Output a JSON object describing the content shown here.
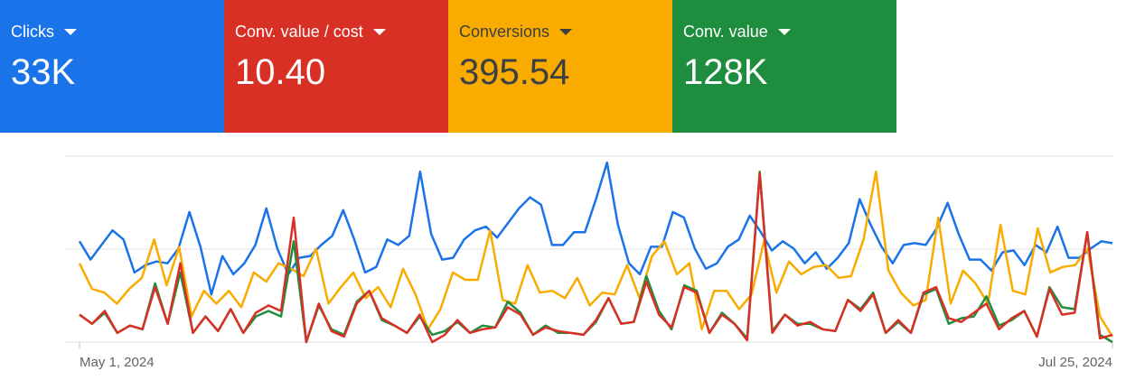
{
  "scorecards": [
    {
      "label": "Clicks",
      "value": "33K",
      "bg": "#1a73e8",
      "fg": "#ffffff"
    },
    {
      "label": "Conv. value / cost",
      "value": "10.40",
      "bg": "#d93025",
      "fg": "#ffffff"
    },
    {
      "label": "Conversions",
      "value": "395.54",
      "bg": "#f9ab00",
      "fg": "#3c4043"
    },
    {
      "label": "Conv. value",
      "value": "128K",
      "bg": "#1e8e3e",
      "fg": "#ffffff"
    }
  ],
  "chart_data": {
    "type": "line",
    "x_tick_labels": [
      "May 1, 2024",
      "Jul 25, 2024"
    ],
    "x_range": [
      "2024-05-01",
      "2024-07-25"
    ],
    "grid": true,
    "ylim": [
      0,
      1
    ],
    "series": [
      {
        "name": "Clicks",
        "color": "#1a73e8",
        "values": [
          0.55,
          0.45,
          0.53,
          0.61,
          0.56,
          0.38,
          0.42,
          0.44,
          0.43,
          0.51,
          0.71,
          0.52,
          0.26,
          0.47,
          0.37,
          0.43,
          0.53,
          0.73,
          0.51,
          0.37,
          0.46,
          0.47,
          0.53,
          0.58,
          0.72,
          0.56,
          0.38,
          0.41,
          0.56,
          0.53,
          0.58,
          0.93,
          0.59,
          0.45,
          0.46,
          0.56,
          0.61,
          0.63,
          0.57,
          0.65,
          0.73,
          0.79,
          0.75,
          0.53,
          0.53,
          0.6,
          0.6,
          0.78,
          0.98,
          0.64,
          0.43,
          0.37,
          0.52,
          0.52,
          0.71,
          0.68,
          0.51,
          0.4,
          0.43,
          0.52,
          0.56,
          0.69,
          0.6,
          0.5,
          0.55,
          0.51,
          0.43,
          0.49,
          0.4,
          0.46,
          0.54,
          0.78,
          0.64,
          0.52,
          0.43,
          0.53,
          0.54,
          0.53,
          0.62,
          0.76,
          0.59,
          0.45,
          0.45,
          0.39,
          0.49,
          0.5,
          0.42,
          0.53,
          0.49,
          0.63,
          0.46,
          0.46,
          0.51,
          0.55,
          0.54
        ]
      },
      {
        "name": "Conversions",
        "color": "#f9ab00",
        "values": [
          0.43,
          0.29,
          0.27,
          0.21,
          0.29,
          0.35,
          0.56,
          0.31,
          0.52,
          0.14,
          0.28,
          0.21,
          0.28,
          0.19,
          0.38,
          0.33,
          0.43,
          0.4,
          0.36,
          0.51,
          0.21,
          0.3,
          0.38,
          0.24,
          0.3,
          0.19,
          0.4,
          0.26,
          0.07,
          0.18,
          0.38,
          0.34,
          0.34,
          0.61,
          0.23,
          0.21,
          0.42,
          0.27,
          0.28,
          0.24,
          0.35,
          0.2,
          0.27,
          0.26,
          0.42,
          0.24,
          0.47,
          0.55,
          0.37,
          0.43,
          0.07,
          0.28,
          0.28,
          0.18,
          0.26,
          0.55,
          0.27,
          0.44,
          0.37,
          0.41,
          0.42,
          0.35,
          0.36,
          0.56,
          0.93,
          0.39,
          0.27,
          0.2,
          0.23,
          0.68,
          0.21,
          0.39,
          0.32,
          0.21,
          0.64,
          0.28,
          0.26,
          0.62,
          0.38,
          0.41,
          0.42,
          0.51,
          0.14,
          0.03
        ]
      },
      {
        "name": "Conv. value",
        "color": "#1e8e3e",
        "values": [
          0.15,
          0.1,
          0.16,
          0.05,
          0.09,
          0.07,
          0.32,
          0.1,
          0.38,
          0.05,
          0.14,
          0.06,
          0.18,
          0.05,
          0.14,
          0.17,
          0.14,
          0.55,
          0.0,
          0.2,
          0.07,
          0.04,
          0.22,
          0.28,
          0.12,
          0.09,
          0.05,
          0.14,
          0.04,
          0.06,
          0.11,
          0.05,
          0.09,
          0.08,
          0.22,
          0.16,
          0.04,
          0.09,
          0.05,
          0.05,
          0.04,
          0.11,
          0.24,
          0.1,
          0.11,
          0.36,
          0.17,
          0.07,
          0.31,
          0.28,
          0.05,
          0.16,
          0.1,
          0.02,
          0.93,
          0.06,
          0.15,
          0.1,
          0.1,
          0.07,
          0.06,
          0.23,
          0.18,
          0.27,
          0.05,
          0.11,
          0.05,
          0.26,
          0.29,
          0.1,
          0.13,
          0.14,
          0.25,
          0.09,
          0.12,
          0.17,
          0.03,
          0.3,
          0.19,
          0.18,
          0.6,
          0.04,
          0.0
        ]
      },
      {
        "name": "Conv. value / cost",
        "color": "#d93025",
        "values": [
          0.15,
          0.1,
          0.17,
          0.05,
          0.09,
          0.07,
          0.3,
          0.1,
          0.43,
          0.05,
          0.14,
          0.06,
          0.18,
          0.05,
          0.16,
          0.2,
          0.17,
          0.68,
          0.0,
          0.21,
          0.06,
          0.03,
          0.21,
          0.28,
          0.13,
          0.09,
          0.05,
          0.15,
          0.0,
          0.04,
          0.12,
          0.05,
          0.07,
          0.08,
          0.19,
          0.15,
          0.04,
          0.08,
          0.06,
          0.05,
          0.04,
          0.12,
          0.24,
          0.1,
          0.11,
          0.33,
          0.15,
          0.08,
          0.3,
          0.27,
          0.05,
          0.15,
          0.1,
          0.01,
          0.92,
          0.05,
          0.15,
          0.09,
          0.11,
          0.07,
          0.06,
          0.23,
          0.17,
          0.26,
          0.05,
          0.12,
          0.05,
          0.27,
          0.3,
          0.13,
          0.11,
          0.16,
          0.21,
          0.07,
          0.13,
          0.17,
          0.03,
          0.29,
          0.15,
          0.16,
          0.6,
          0.02,
          0.04
        ]
      }
    ]
  }
}
